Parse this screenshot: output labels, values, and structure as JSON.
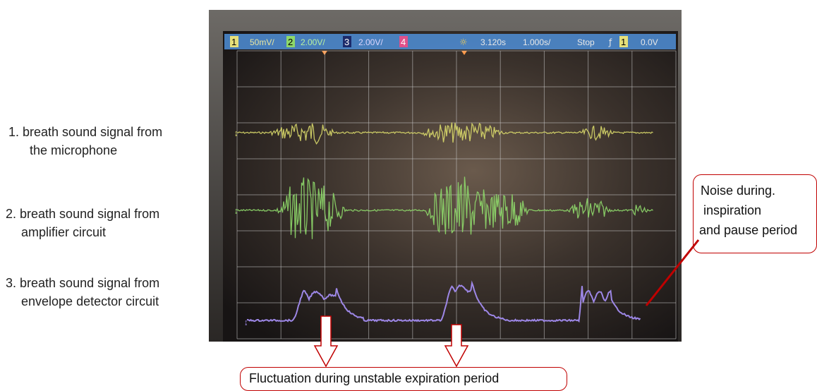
{
  "labels": [
    {
      "lines": [
        "1. breath sound signal from",
        "the microphone"
      ]
    },
    {
      "lines": [
        "2. breath sound signal from",
        "amplifier circuit"
      ]
    },
    {
      "lines": [
        "3. breath sound signal from",
        "envelope detector  circuit"
      ]
    }
  ],
  "callouts": {
    "noise": [
      "Noise during.",
      "inspiration",
      "and pause period"
    ],
    "fluctuation": "Fluctuation during unstable expiration period"
  },
  "scope": {
    "ch1_badge": "1",
    "ch1_scale": "50mV/",
    "ch2_badge": "2",
    "ch2_scale": "2.00V/",
    "ch3_badge": "3",
    "ch3_scale": "2.00V/",
    "ch4_badge": "4",
    "time_offset": "3.120s",
    "time_scale": "1.000s/",
    "run_state": "Stop",
    "trigger_badge": "1",
    "trigger_level": "0.0V"
  },
  "colors": {
    "ch1": "#d8d86a",
    "ch2": "#8ed86a",
    "ch3": "#9d87e6",
    "callout_border": "#c00000",
    "status_bar": "#4f8fd8"
  }
}
